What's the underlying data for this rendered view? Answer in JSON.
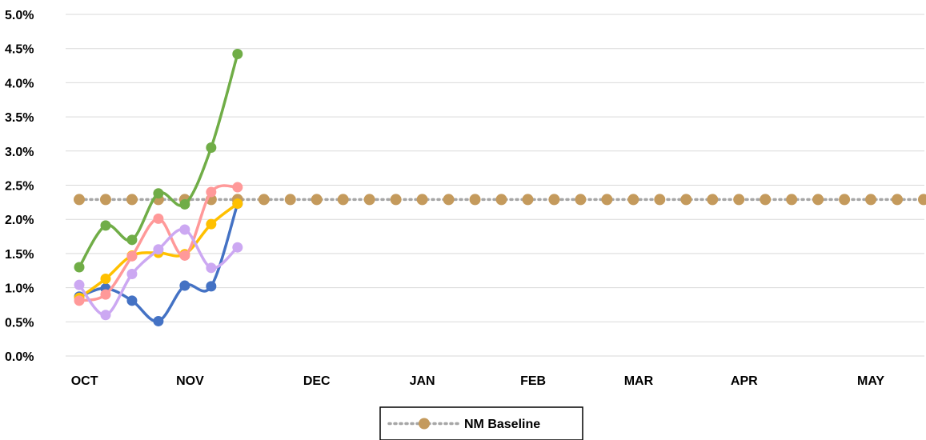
{
  "chart_data": {
    "type": "line",
    "title": "",
    "xlabel": "",
    "ylabel": "",
    "ylim": [
      0,
      5.0
    ],
    "yticks": [
      "0.0%",
      "0.5%",
      "1.0%",
      "1.5%",
      "2.0%",
      "2.5%",
      "3.0%",
      "3.5%",
      "4.0%",
      "4.5%",
      "5.0%"
    ],
    "x_month_labels": [
      "OCT",
      "NOV",
      "DEC",
      "JAN",
      "FEB",
      "MAR",
      "APR",
      "MAY"
    ],
    "x_month_positions": [
      0.2,
      4.2,
      9.0,
      13.0,
      17.2,
      21.2,
      25.2,
      30.0
    ],
    "x_count": 33,
    "grid": true,
    "legend_position": "bottom",
    "series": [
      {
        "name": "",
        "color": "#4472C4",
        "x": [
          0,
          1,
          2,
          3,
          4,
          5,
          6
        ],
        "values": [
          0.87,
          0.99,
          0.81,
          0.51,
          1.03,
          1.02,
          2.23
        ]
      },
      {
        "name": "",
        "color": "#70AD47",
        "x": [
          0,
          1,
          2,
          3,
          4,
          5,
          6
        ],
        "values": [
          1.3,
          1.91,
          1.7,
          2.38,
          2.22,
          3.05,
          4.42
        ]
      },
      {
        "name": "",
        "color": "#FFC000",
        "x": [
          0,
          1,
          2,
          3,
          4,
          5,
          6
        ],
        "values": [
          0.85,
          1.13,
          1.47,
          1.51,
          1.49,
          1.93,
          2.23
        ]
      },
      {
        "name": "",
        "color": "#FF9999",
        "x": [
          0,
          1,
          2,
          3,
          4,
          5,
          6
        ],
        "values": [
          0.81,
          0.9,
          1.46,
          2.01,
          1.47,
          2.4,
          2.47
        ]
      },
      {
        "name": "",
        "color": "#CCA8F2",
        "x": [
          0,
          1,
          2,
          3,
          4,
          5,
          6
        ],
        "values": [
          1.04,
          0.6,
          1.2,
          1.56,
          1.85,
          1.29,
          1.59
        ]
      },
      {
        "name": "NM Baseline",
        "color": "#C49A5C",
        "line_color": "#A6A6A6",
        "dotted": true,
        "x": [
          0,
          1,
          2,
          3,
          4,
          5,
          6,
          7,
          8,
          9,
          10,
          11,
          12,
          13,
          14,
          15,
          16,
          17,
          18,
          19,
          20,
          21,
          22,
          23,
          24,
          25,
          26,
          27,
          28,
          29,
          30,
          31,
          32
        ],
        "values": [
          2.29,
          2.29,
          2.29,
          2.29,
          2.29,
          2.29,
          2.29,
          2.29,
          2.29,
          2.29,
          2.29,
          2.29,
          2.29,
          2.29,
          2.29,
          2.29,
          2.29,
          2.29,
          2.29,
          2.29,
          2.29,
          2.29,
          2.29,
          2.29,
          2.29,
          2.29,
          2.29,
          2.29,
          2.29,
          2.29,
          2.29,
          2.29,
          2.29
        ]
      }
    ]
  },
  "legend": {
    "label": "NM Baseline"
  }
}
